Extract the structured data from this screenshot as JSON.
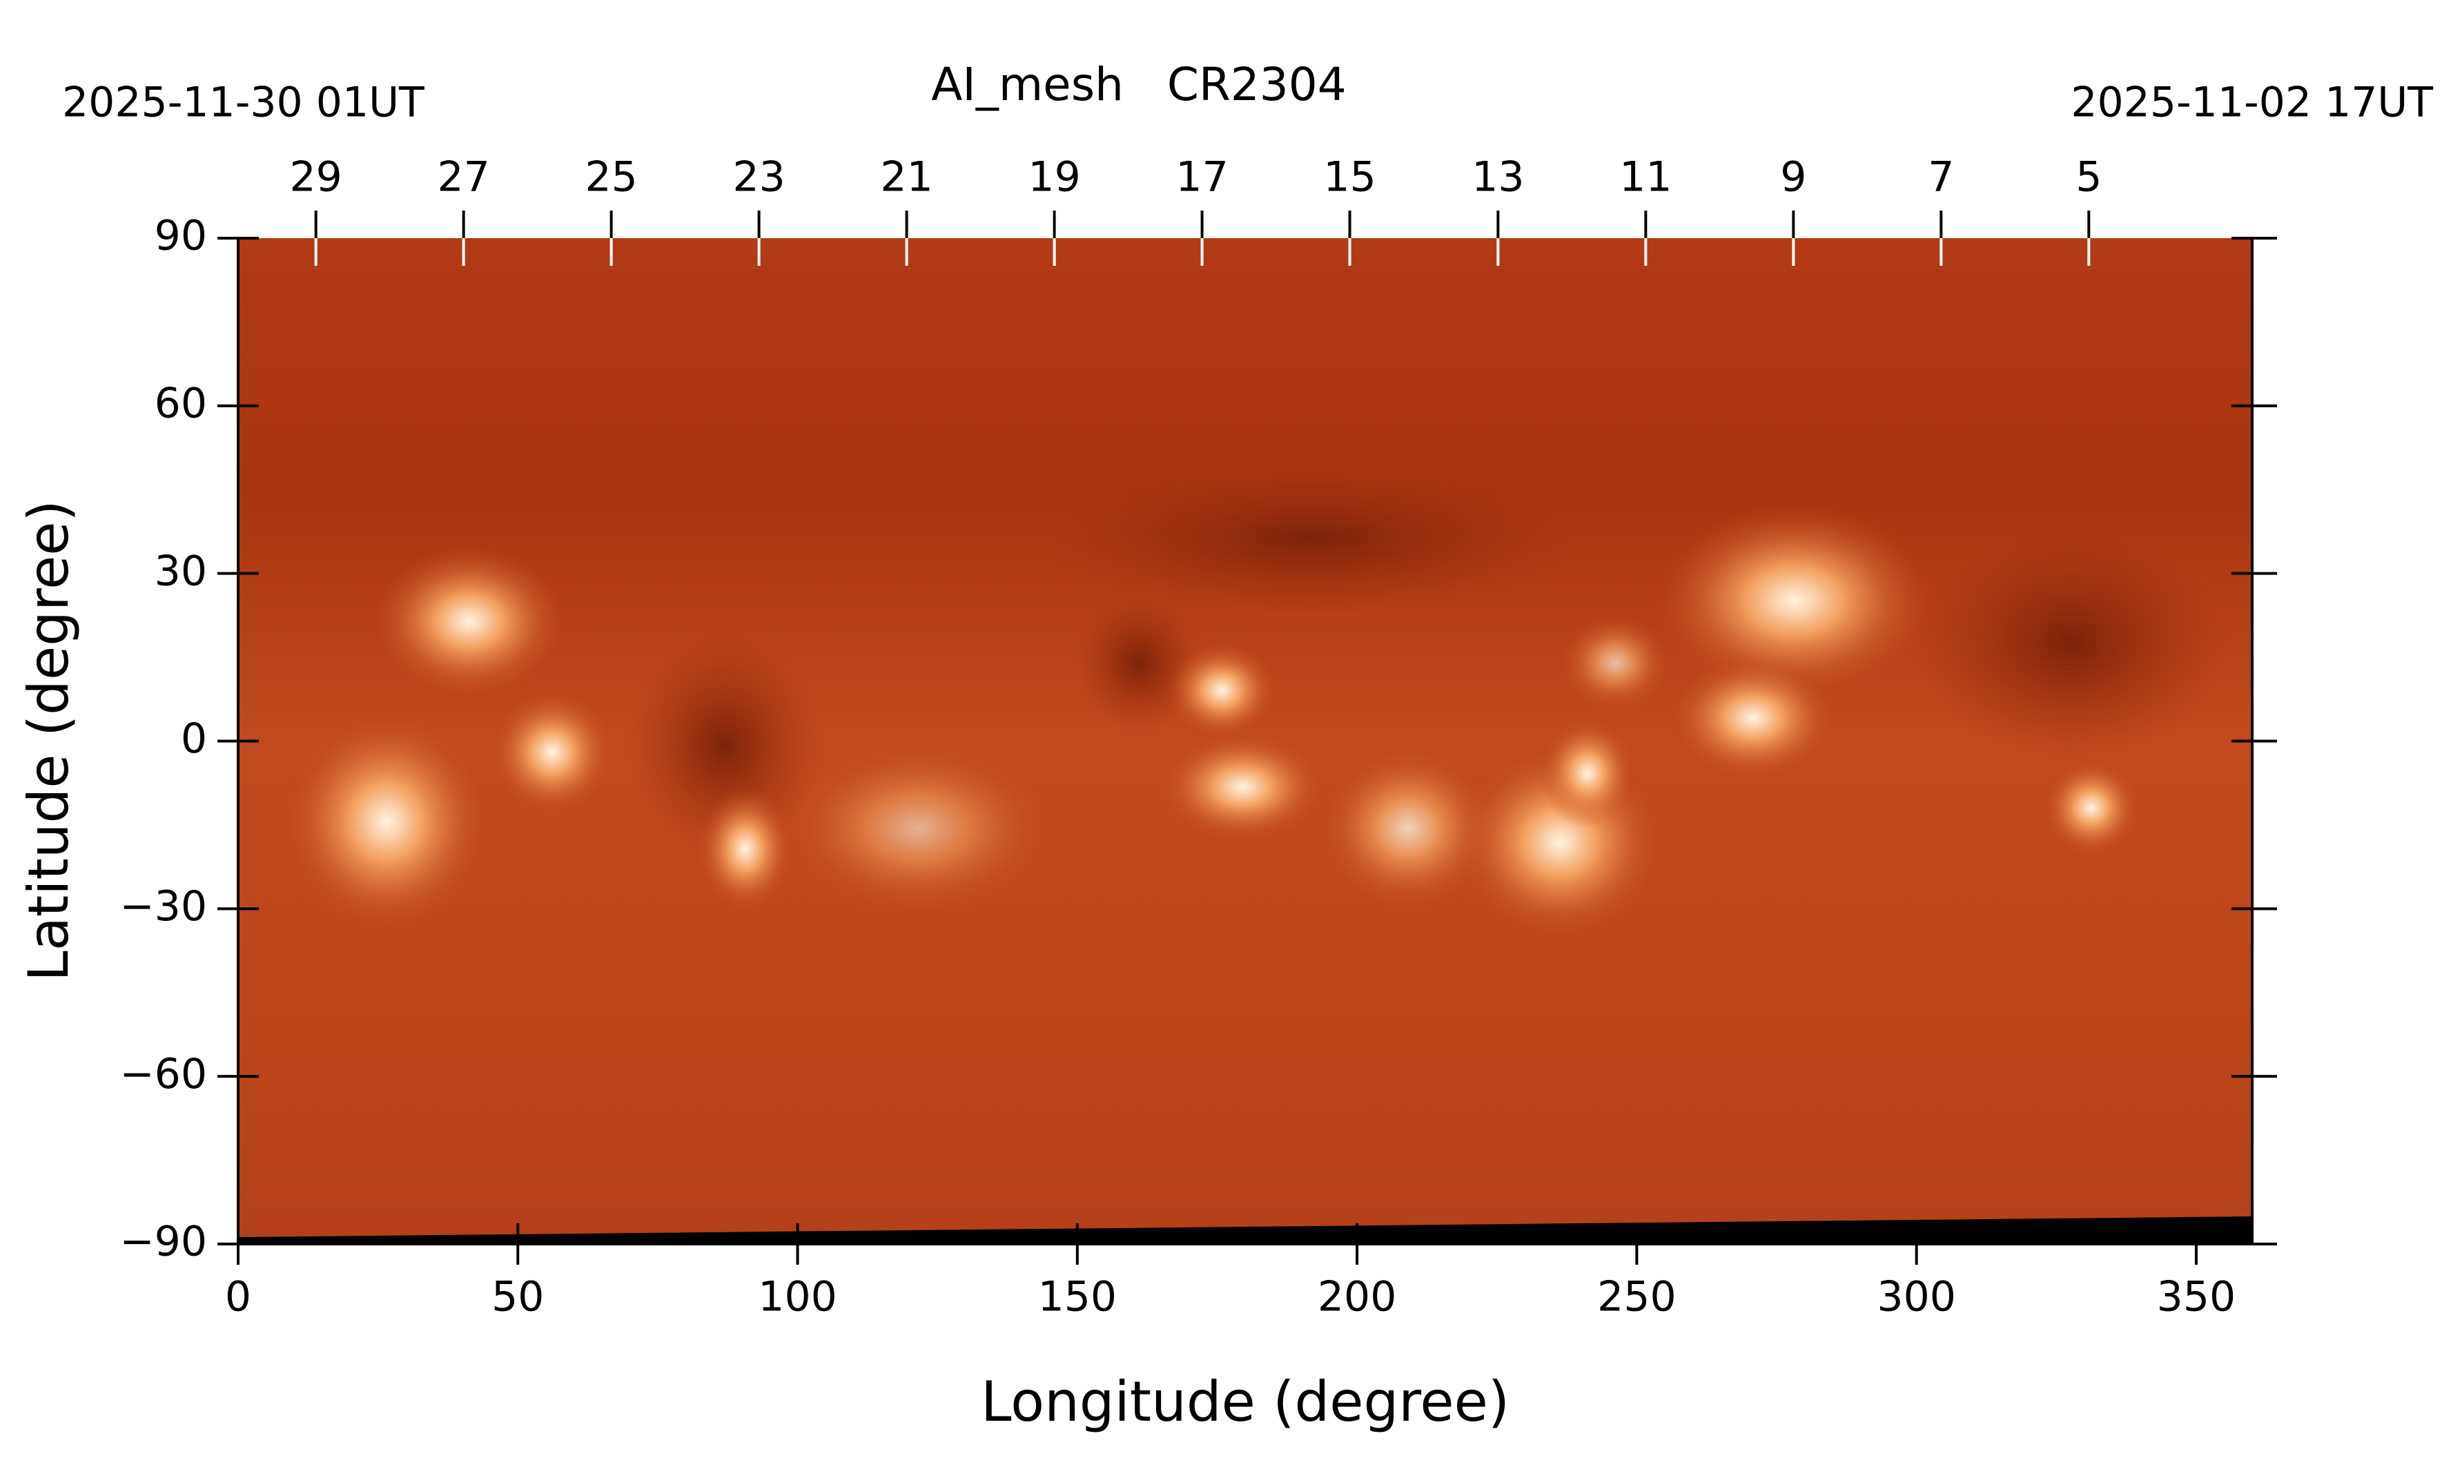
{
  "chart_data": {
    "type": "image",
    "title": "AI_mesh   CR2304",
    "left_date": "2025-11-30 01UT",
    "right_date": "2025-11-02 17UT",
    "x_label": "Longitude (degree)",
    "y_label": "Latitude (degree)",
    "xlim": [
      0,
      360
    ],
    "xticks": [
      0,
      50,
      100,
      150,
      200,
      250,
      300,
      350
    ],
    "ylim": [
      -90,
      90
    ],
    "yticks": [
      {
        "value": -90,
        "label": "−90"
      },
      {
        "value": -60,
        "label": "−60"
      },
      {
        "value": -30,
        "label": "−30"
      },
      0,
      30,
      60,
      90
    ],
    "x2ticks": [
      {
        "value": 13.9,
        "label": "29"
      },
      {
        "value": 40.3,
        "label": "27"
      },
      {
        "value": 66.7,
        "label": "25"
      },
      {
        "value": 93.1,
        "label": "23"
      },
      {
        "value": 119.5,
        "label": "21"
      },
      {
        "value": 145.9,
        "label": "19"
      },
      {
        "value": 172.3,
        "label": "17"
      },
      {
        "value": 198.7,
        "label": "15"
      },
      {
        "value": 225.2,
        "label": "13"
      },
      {
        "value": 251.6,
        "label": "11"
      },
      {
        "value": 278,
        "label": "9"
      },
      {
        "value": 304.4,
        "label": "7"
      },
      {
        "value": 330.8,
        "label": "5"
      }
    ]
  }
}
